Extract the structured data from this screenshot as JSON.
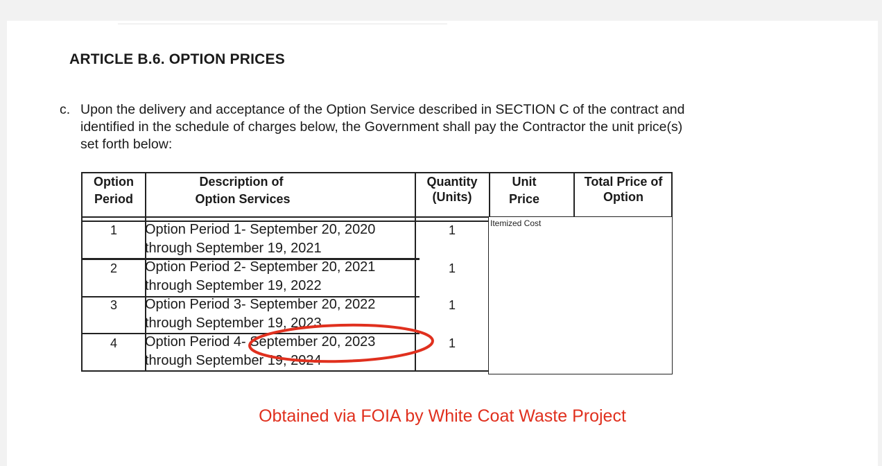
{
  "document": {
    "heading": "ARTICLE B.6. OPTION PRICES",
    "paragraph": {
      "marker": "c.",
      "lines": [
        "Upon the delivery and acceptance of the Option Service described in SECTION C of the contract and",
        "identified in the schedule of charges below, the Government shall pay the Contractor the unit price(s)",
        "set forth below:"
      ]
    },
    "table": {
      "headers": {
        "option_period": [
          "Option",
          "Period"
        ],
        "description": [
          "Description of",
          "Option Services"
        ],
        "quantity": [
          "Quantity",
          "(Units)"
        ],
        "unit_price": [
          "Unit",
          "Price"
        ],
        "total_price": [
          "Total Price of",
          "Option"
        ]
      },
      "rows": [
        {
          "period": "1",
          "desc_line1": "Option Period 1- September 20, 2020",
          "desc_line2": "through September 19, 2021",
          "quantity": "1"
        },
        {
          "period": "2",
          "desc_line1": "Option Period 2- September 20, 2021",
          "desc_line2": "through September 19, 2022",
          "quantity": "1"
        },
        {
          "period": "3",
          "desc_line1": "Option Period 3- September 20, 2022",
          "desc_line2": "through September 19, 2023",
          "quantity": "1"
        },
        {
          "period": "4",
          "desc_line1": "Option Period 4- September 20, 2023",
          "desc_line2": "through September 19, 2024",
          "quantity": "1"
        }
      ],
      "price_box_label": "Itemized Cost"
    },
    "watermark": "Obtained via FOIA by White Coat Waste Project",
    "annotation_color": "#e0301e"
  }
}
